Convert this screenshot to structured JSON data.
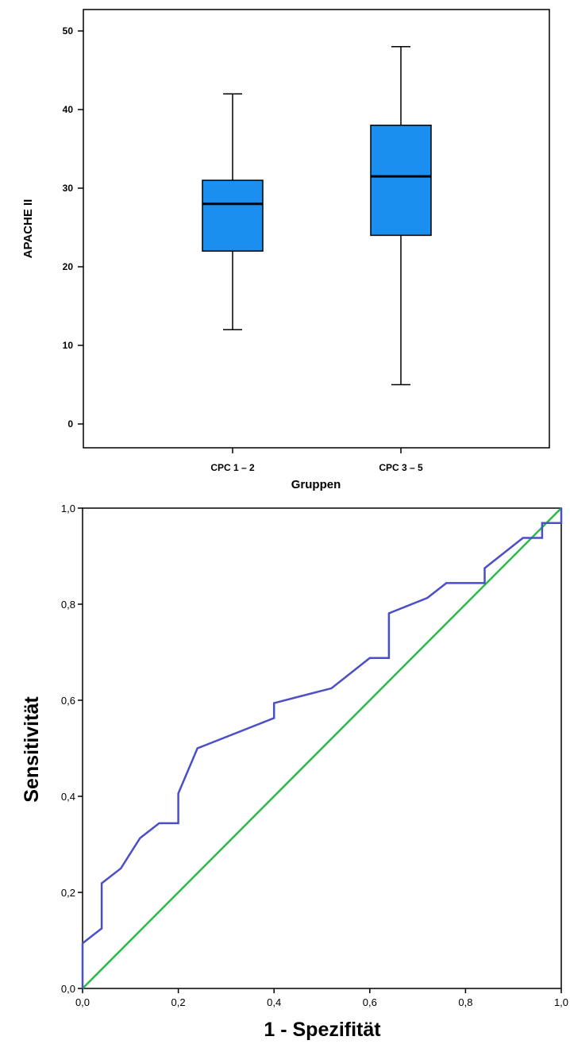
{
  "chart_data": [
    {
      "type": "box",
      "title": "",
      "xlabel": "Gruppen",
      "ylabel": "APACHE II",
      "ylim": [
        -3,
        54
      ],
      "yticks": [
        "0",
        "10",
        "20",
        "30",
        "40",
        "50"
      ],
      "ytick_values": [
        0,
        10,
        20,
        30,
        40,
        50
      ],
      "categories": [
        "CPC 1 – 2",
        "CPC 3 – 5"
      ],
      "boxes": [
        {
          "min": 12,
          "q1": 22,
          "median": 28,
          "q3": 31,
          "max": 42
        },
        {
          "min": 5,
          "q1": 24,
          "median": 31.5,
          "q3": 38,
          "max": 48
        }
      ],
      "box_color": "#1a8ff0",
      "grid": false
    },
    {
      "type": "line",
      "title": "",
      "xlabel": "1 - Spezifität",
      "ylabel": "Sensitivität",
      "xlim": [
        0,
        1
      ],
      "ylim": [
        0,
        1
      ],
      "xticks": [
        "0,0",
        "0,2",
        "0,4",
        "0,6",
        "0,8",
        "1,0"
      ],
      "xtick_values": [
        0,
        0.2,
        0.4,
        0.6,
        0.8,
        1.0
      ],
      "yticks": [
        "0,0",
        "0,2",
        "0,4",
        "0,6",
        "0,8",
        "1,0"
      ],
      "ytick_values": [
        0,
        0.2,
        0.4,
        0.6,
        0.8,
        1.0
      ],
      "grid": false,
      "series": [
        {
          "color": "#4a4fc8",
          "x": [
            0,
            0,
            0.04,
            0.04,
            0.08,
            0.12,
            0.16,
            0.2,
            0.2,
            0.24,
            0.4,
            0.4,
            0.52,
            0.6,
            0.64,
            0.64,
            0.72,
            0.76,
            0.84,
            0.84,
            0.92,
            0.96,
            0.96,
            1.0,
            1.0
          ],
          "y": [
            0,
            0.094,
            0.125,
            0.219,
            0.25,
            0.313,
            0.344,
            0.344,
            0.406,
            0.5,
            0.563,
            0.594,
            0.625,
            0.688,
            0.688,
            0.781,
            0.813,
            0.844,
            0.844,
            0.875,
            0.938,
            0.938,
            0.969,
            0.969,
            1.0
          ]
        },
        {
          "color": "#2db84a",
          "x": [
            0,
            1
          ],
          "y": [
            0,
            1
          ]
        }
      ]
    }
  ]
}
